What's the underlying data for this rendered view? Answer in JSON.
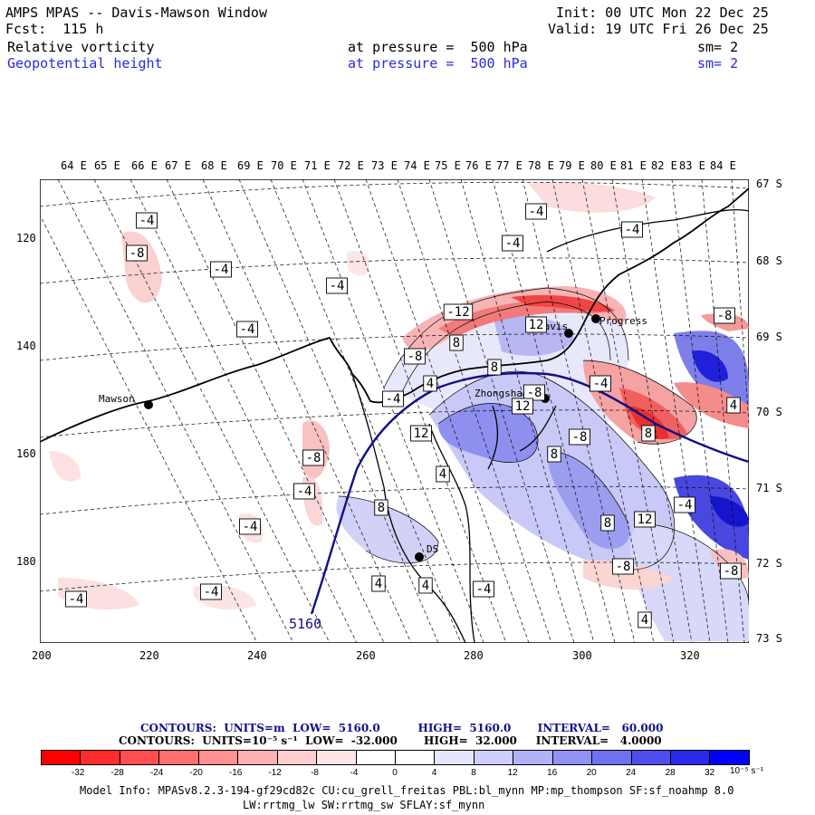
{
  "header": {
    "title": "AMPS MPAS -- Davis-Mawson Window",
    "fcst": "Fcst:  115 h",
    "init": "Init: 00 UTC Mon 22 Dec 25",
    "valid": "Valid: 19 UTC Fri 26 Dec 25",
    "field1": {
      "name": "Relative vorticity",
      "level": "at pressure =  500 hPa",
      "smooth": "sm= 2"
    },
    "field2": {
      "name": "Geopotential height",
      "level": "at pressure =  500 hPa",
      "smooth": "sm= 2"
    }
  },
  "axes": {
    "top_lon": [
      "64 E",
      "65 E",
      "66 E",
      "67 E",
      "68 E",
      "69 E",
      "70 E",
      "71 E",
      "72 E",
      "73 E",
      "74 E",
      "75 E",
      "76 E",
      "77 E",
      "78 E",
      "79 E",
      "80 E",
      "81 E",
      "82 E",
      "83 E",
      "84 E"
    ],
    "right_lat": [
      "67 S",
      "68 S",
      "69 S",
      "70 S",
      "71 S",
      "72 S",
      "73 S"
    ],
    "left_y": [
      "120",
      "140",
      "160",
      "180"
    ],
    "bottom_x": [
      "200",
      "220",
      "240",
      "260",
      "280",
      "300",
      "320"
    ]
  },
  "stations": [
    {
      "name": "Mawson"
    },
    {
      "name": "Davis"
    },
    {
      "name": "Zhongshan"
    },
    {
      "name": "Progress"
    },
    {
      "name": "DS"
    }
  ],
  "contour_labels": [
    "-4",
    "-8",
    "-4",
    "-4",
    "-4",
    "-4",
    "-4",
    "-8",
    "-12",
    "8",
    "12",
    "-4",
    "-8",
    "4",
    "12",
    "12",
    "8",
    "8",
    "-4",
    "4",
    "8",
    "4",
    "4",
    "-4",
    "-4",
    "-8",
    "-4",
    "8",
    "12",
    "-8",
    "-4",
    "4",
    "4",
    "-8",
    "8",
    "-8",
    "-4",
    "-4",
    "-4",
    "-8"
  ],
  "height_label": "5160",
  "footer": {
    "contours1": "CONTOURS:  UNITS=m  LOW=  5160.0          HIGH=  5160.0       INTERVAL=   60.000",
    "contours2": "CONTOURS:  UNITS=10⁻⁵ s⁻¹  LOW=  -32.000       HIGH=  32.000     INTERVAL=   4.0000",
    "colorbar_labels": [
      "-32",
      "-28",
      "-24",
      "-20",
      "-16",
      "-12",
      "-8",
      "-4",
      "0",
      "4",
      "8",
      "12",
      "16",
      "20",
      "24",
      "28",
      "32"
    ],
    "colorbar_unit": "10⁻⁵ s⁻¹",
    "model_info1": "Model Info: MPASv8.2.3-194-gf29cd82c CU:cu_grell_freitas PBL:bl_mynn MP:mp_thompson SF:sf_noahmp 8.0",
    "model_info2": "LW:rrtmg_lw SW:rrtmg_sw SFLAY:sf_mynn"
  },
  "colors": {
    "neg_strong": "#ff0000",
    "pos_strong": "#0000ff",
    "height_contour": "#10108a"
  }
}
